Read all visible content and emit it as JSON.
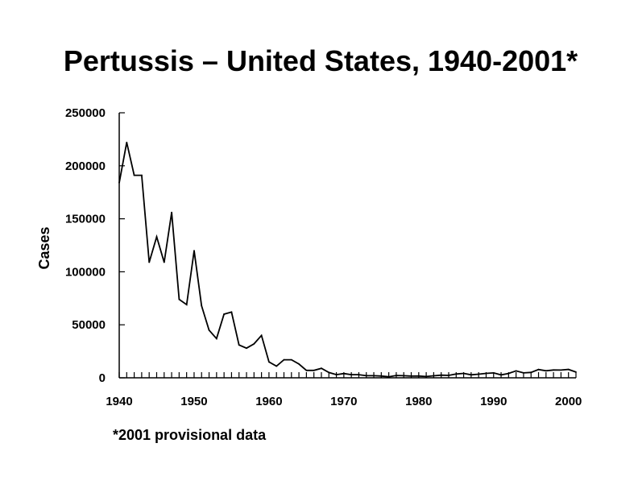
{
  "chart_data": {
    "type": "line",
    "title": "Pertussis – United States, 1940-2001*",
    "ylabel": "Cases",
    "xlabel": "",
    "footnote": "*2001 provisional data",
    "xlim": [
      1940,
      2001
    ],
    "ylim": [
      0,
      250000
    ],
    "x_ticks": [
      1940,
      1950,
      1960,
      1970,
      1980,
      1990,
      2000
    ],
    "y_ticks": [
      0,
      50000,
      100000,
      150000,
      200000,
      250000
    ],
    "grid": false,
    "legend": "none",
    "line_color": "#000000",
    "series": [
      {
        "x": [
          1940,
          1941,
          1942,
          1943,
          1944,
          1945,
          1946,
          1947,
          1948,
          1949,
          1950,
          1951,
          1952,
          1953,
          1954,
          1955,
          1956,
          1957,
          1958,
          1959,
          1960,
          1961,
          1962,
          1963,
          1964,
          1965,
          1966,
          1967,
          1968,
          1969,
          1970,
          1971,
          1972,
          1973,
          1974,
          1975,
          1976,
          1977,
          1978,
          1979,
          1980,
          1981,
          1982,
          1983,
          1984,
          1985,
          1986,
          1987,
          1988,
          1989,
          1990,
          1991,
          1992,
          1993,
          1994,
          1995,
          1996,
          1997,
          1998,
          1999,
          2000,
          2001
        ],
        "values": [
          184000,
          222000,
          191000,
          191000,
          109000,
          133000,
          109000,
          156000,
          74000,
          69000,
          120000,
          68000,
          45000,
          37000,
          60000,
          62000,
          31000,
          28000,
          32000,
          40000,
          15000,
          11000,
          17000,
          17000,
          13000,
          7000,
          7000,
          9000,
          5000,
          3000,
          4000,
          3000,
          3000,
          2000,
          2000,
          1700,
          1000,
          2200,
          2000,
          1600,
          1700,
          1200,
          1900,
          2500,
          2300,
          3600,
          4200,
          2800,
          3400,
          4200,
          4600,
          2700,
          4100,
          6500,
          4600,
          5100,
          7800,
          6600,
          7400,
          7300,
          7900,
          5400
        ]
      }
    ]
  }
}
